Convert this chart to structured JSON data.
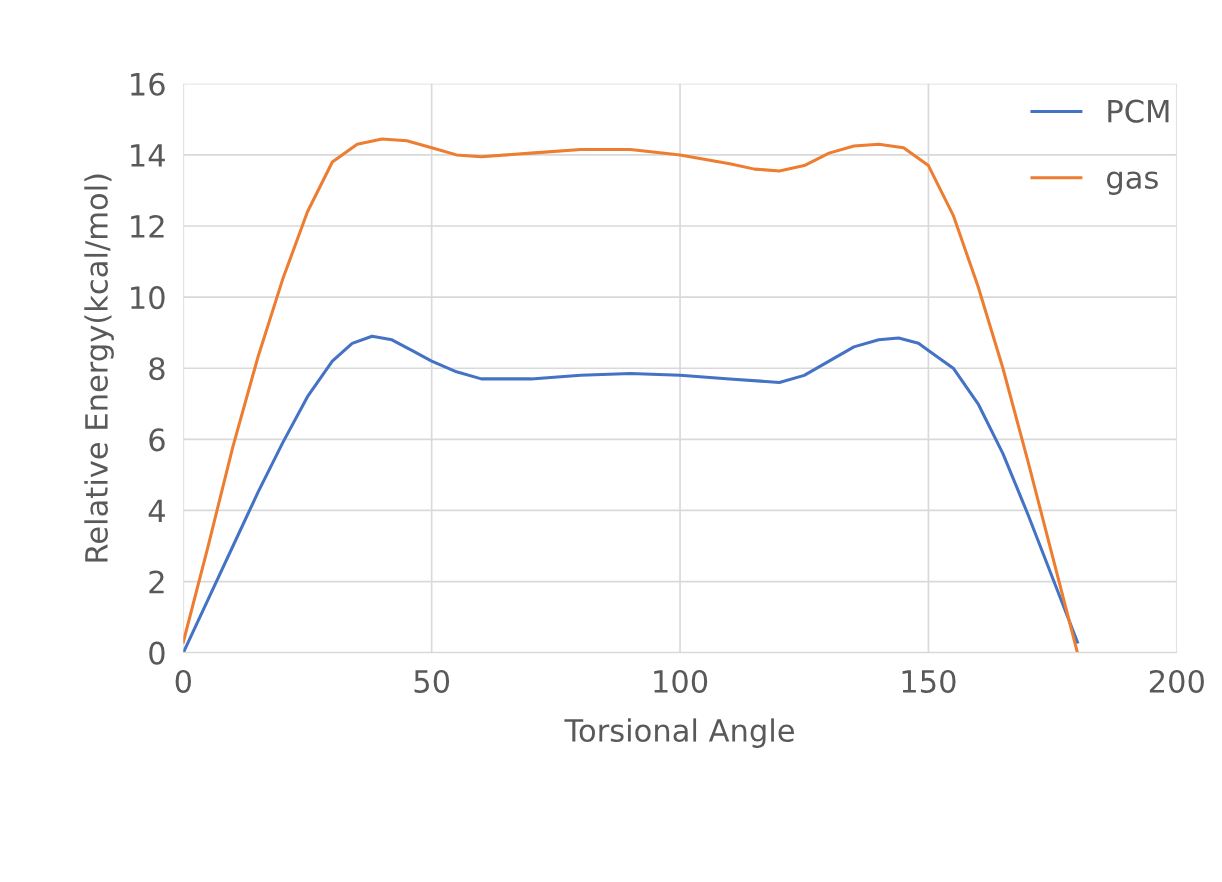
{
  "chart_data": {
    "type": "line",
    "xlabel": "Torsional Angle",
    "ylabel": "Relative Energy(kcal/mol)",
    "xlim": [
      0,
      200
    ],
    "xticks": [
      0,
      50,
      100,
      150,
      200
    ],
    "ylim": [
      0,
      16
    ],
    "yticks": [
      0,
      2,
      4,
      6,
      8,
      10,
      12,
      14,
      16
    ],
    "grid": true,
    "legend": "top right",
    "marker": "none",
    "line_style": "solid",
    "series": [
      {
        "name": "PCM",
        "color": "#4472c4",
        "x": [
          0,
          5,
          10,
          15,
          20,
          25,
          30,
          34,
          38,
          42,
          46,
          50,
          55,
          60,
          70,
          80,
          90,
          100,
          110,
          120,
          125,
          130,
          135,
          140,
          144,
          148,
          150,
          155,
          160,
          165,
          170,
          175,
          180
        ],
        "values": [
          0,
          1.5,
          3.0,
          4.5,
          5.9,
          7.2,
          8.2,
          8.7,
          8.9,
          8.8,
          8.5,
          8.2,
          7.9,
          7.7,
          7.7,
          7.8,
          7.85,
          7.8,
          7.7,
          7.6,
          7.8,
          8.2,
          8.6,
          8.8,
          8.85,
          8.7,
          8.5,
          8.0,
          7.0,
          5.6,
          3.9,
          2.1,
          0.3
        ]
      },
      {
        "name": "gas",
        "color": "#ed7d31",
        "x": [
          0,
          5,
          10,
          15,
          20,
          25,
          30,
          35,
          40,
          45,
          50,
          55,
          60,
          70,
          80,
          90,
          100,
          110,
          115,
          120,
          125,
          130,
          135,
          140,
          145,
          150,
          155,
          160,
          165,
          170,
          175,
          180
        ],
        "values": [
          0.3,
          3.0,
          5.8,
          8.3,
          10.5,
          12.4,
          13.8,
          14.3,
          14.45,
          14.4,
          14.2,
          14.0,
          13.95,
          14.05,
          14.15,
          14.15,
          14.0,
          13.75,
          13.6,
          13.55,
          13.7,
          14.05,
          14.25,
          14.3,
          14.2,
          13.7,
          12.3,
          10.3,
          8.0,
          5.4,
          2.7,
          0
        ]
      }
    ]
  }
}
